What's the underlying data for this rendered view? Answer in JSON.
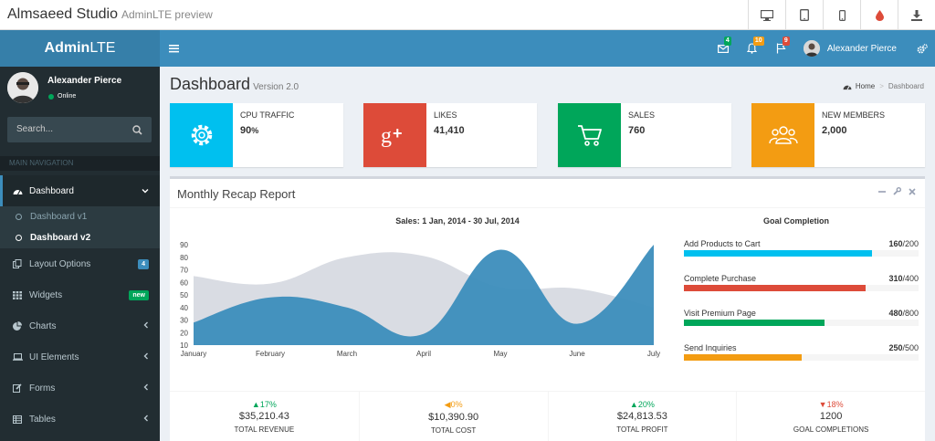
{
  "preview": {
    "title": "Almsaeed Studio",
    "subtitle": "AdminLTE preview",
    "buttons": [
      "desktop-icon",
      "tablet-icon",
      "mobile-icon",
      "drop-icon",
      "download-icon"
    ]
  },
  "header": {
    "logo_bold": "Admin",
    "logo_rest": "LTE",
    "notifications": [
      {
        "icon": "envelope-icon",
        "count": "4",
        "color": "#00a65a"
      },
      {
        "icon": "bell-icon",
        "count": "10",
        "color": "#f39c12"
      },
      {
        "icon": "flag-icon",
        "count": "9",
        "color": "#dd4b39"
      }
    ],
    "user_name": "Alexander Pierce"
  },
  "sidebar": {
    "user_name": "Alexander Pierce",
    "status": "Online",
    "search_placeholder": "Search...",
    "nav_header": "MAIN NAVIGATION",
    "items": [
      {
        "label": "Dashboard",
        "icon": "dashboard-icon"
      },
      {
        "label": "Layout Options",
        "icon": "files-icon",
        "badge": "4"
      },
      {
        "label": "Widgets",
        "icon": "th-icon",
        "badge": "new"
      },
      {
        "label": "Charts",
        "icon": "pie-chart-icon"
      },
      {
        "label": "UI Elements",
        "icon": "laptop-icon"
      },
      {
        "label": "Forms",
        "icon": "edit-icon"
      },
      {
        "label": "Tables",
        "icon": "table-icon"
      }
    ],
    "sub_items": [
      "Dashboard v1",
      "Dashboard v2"
    ]
  },
  "content": {
    "title": "Dashboard",
    "version": "Version 2.0",
    "breadcrumb": {
      "home": "Home",
      "current": "Dashboard"
    }
  },
  "info_boxes": [
    {
      "label": "CPU TRAFFIC",
      "value": "90",
      "unit": "%",
      "color": "#00c0ef",
      "icon": "gear-icon"
    },
    {
      "label": "LIKES",
      "value": "41,410",
      "color": "#dd4b39",
      "icon": "google-plus-icon"
    },
    {
      "label": "SALES",
      "value": "760",
      "color": "#00a65a",
      "icon": "shopping-cart-icon"
    },
    {
      "label": "NEW MEMBERS",
      "value": "2,000",
      "color": "#f39c12",
      "icon": "users-icon"
    }
  ],
  "report": {
    "title": "Monthly Recap Report",
    "chart_title": "Sales: 1 Jan, 2014 - 30 Jul, 2014",
    "goal_title": "Goal Completion",
    "goals": [
      {
        "label": "Add Products to Cart",
        "current": "160",
        "total": "/200",
        "fraction": 0.8,
        "color": "#00c0ef"
      },
      {
        "label": "Complete Purchase",
        "current": "310",
        "total": "/400",
        "fraction": 0.775,
        "color": "#dd4b39"
      },
      {
        "label": "Visit Premium Page",
        "current": "480",
        "total": "/800",
        "fraction": 0.6,
        "color": "#00a65a"
      },
      {
        "label": "Send Inquiries",
        "current": "250",
        "total": "/500",
        "fraction": 0.5,
        "color": "#f39c12"
      }
    ],
    "footer": [
      {
        "pct": "17%",
        "direction": "up",
        "color": "#00a65a",
        "amount": "$35,210.43",
        "label": "TOTAL REVENUE"
      },
      {
        "pct": "0%",
        "direction": "left",
        "color": "#f39c12",
        "amount": "$10,390.90",
        "label": "TOTAL COST"
      },
      {
        "pct": "20%",
        "direction": "up",
        "color": "#00a65a",
        "amount": "$24,813.53",
        "label": "TOTAL PROFIT"
      },
      {
        "pct": "18%",
        "direction": "down",
        "color": "#dd4b39",
        "amount": "1200",
        "label": "GOAL COMPLETIONS"
      }
    ]
  },
  "chart_data": {
    "type": "area",
    "x": [
      "January",
      "February",
      "March",
      "April",
      "May",
      "June",
      "July"
    ],
    "ylim": [
      10,
      90
    ],
    "yticks": [
      10,
      20,
      30,
      40,
      50,
      60,
      70,
      80,
      90
    ],
    "series": [
      {
        "values": [
          65,
          59,
          80,
          81,
          56,
          55,
          40
        ],
        "color": "#d2d6de"
      },
      {
        "values": [
          28,
          48,
          40,
          19,
          86,
          27,
          90
        ],
        "color": "#3c8dbc"
      }
    ]
  }
}
